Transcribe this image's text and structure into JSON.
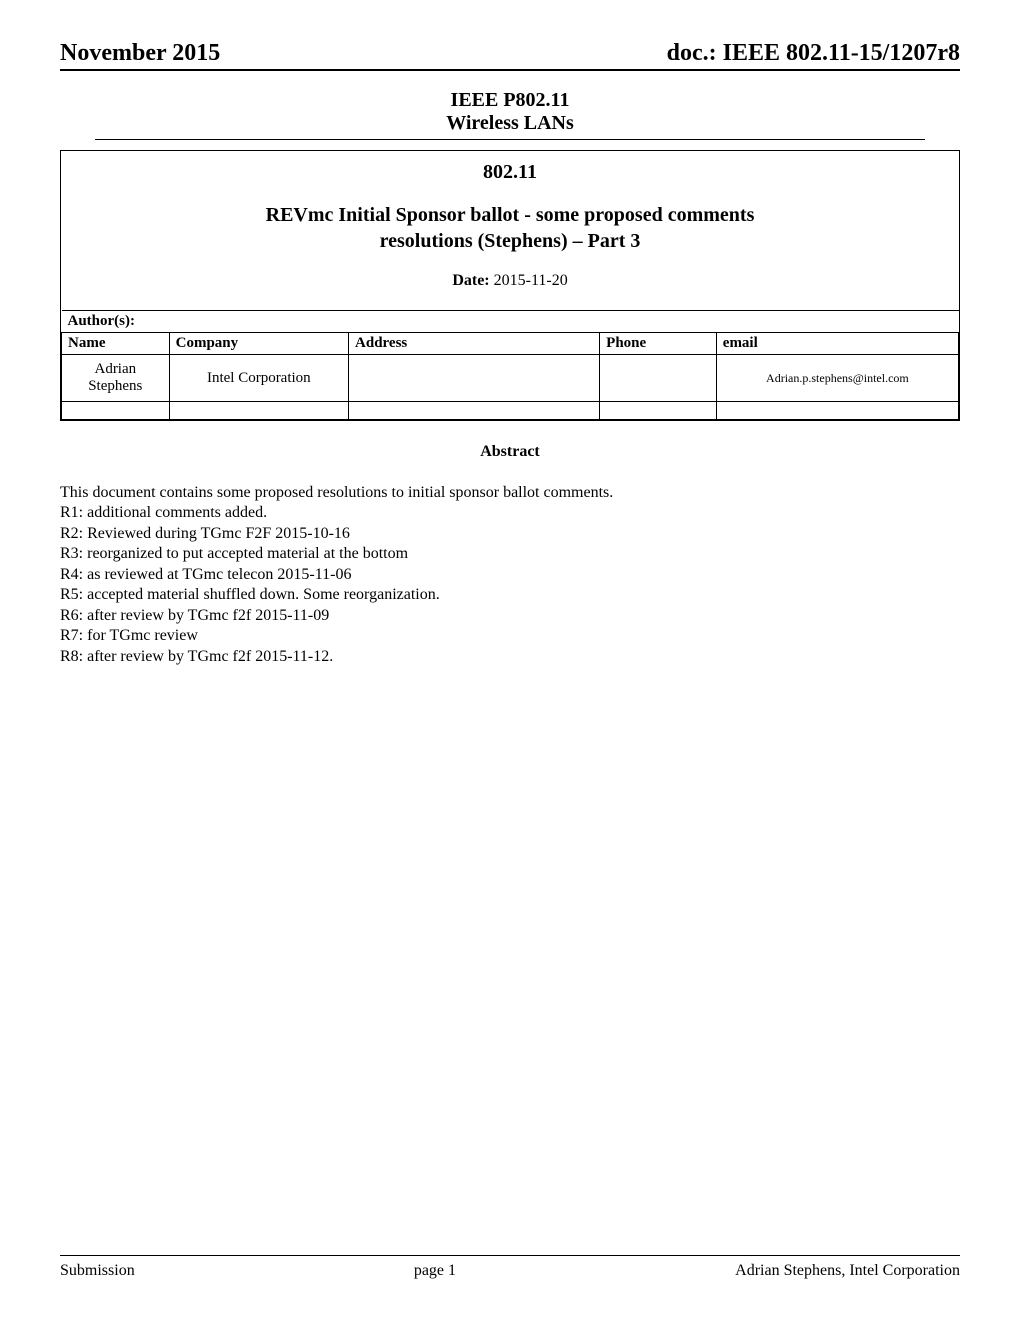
{
  "header": {
    "left": "November 2015",
    "right": "doc.: IEEE 802.11-15/1207r8"
  },
  "title_block": {
    "line1": "IEEE P802.11",
    "line2": "Wireless LANs"
  },
  "doc": {
    "number": "802.11",
    "title_line1": "REVmc Initial Sponsor ballot - some proposed comments",
    "title_line2": "resolutions (Stephens) – Part 3",
    "date_label": "Date:",
    "date_value": "  2015-11-20",
    "authors_label": "Author(s):"
  },
  "authors_table": {
    "columns": [
      "Name",
      "Company",
      "Address",
      "Phone",
      "email"
    ],
    "rows": [
      {
        "name": "Adrian Stephens",
        "company": "Intel Corporation",
        "address": "",
        "phone": "",
        "email": "Adrian.p.stephens@intel.com"
      }
    ]
  },
  "abstract": {
    "label": "Abstract",
    "intro": "This document contains some proposed resolutions to initial sponsor ballot comments.",
    "revisions": [
      "R1:  additional comments added.",
      "R2: Reviewed during TGmc F2F 2015-10-16",
      "R3: reorganized to put accepted material at the bottom",
      "R4: as reviewed at TGmc telecon 2015-11-06",
      "R5: accepted material shuffled down.  Some reorganization.",
      "R6: after review by TGmc f2f 2015-11-09",
      "R7: for TGmc review",
      "R8: after review by TGmc f2f 2015-11-12."
    ]
  },
  "footer": {
    "left": "Submission",
    "center": "page 1",
    "right": "Adrian Stephens, Intel Corporation"
  }
}
